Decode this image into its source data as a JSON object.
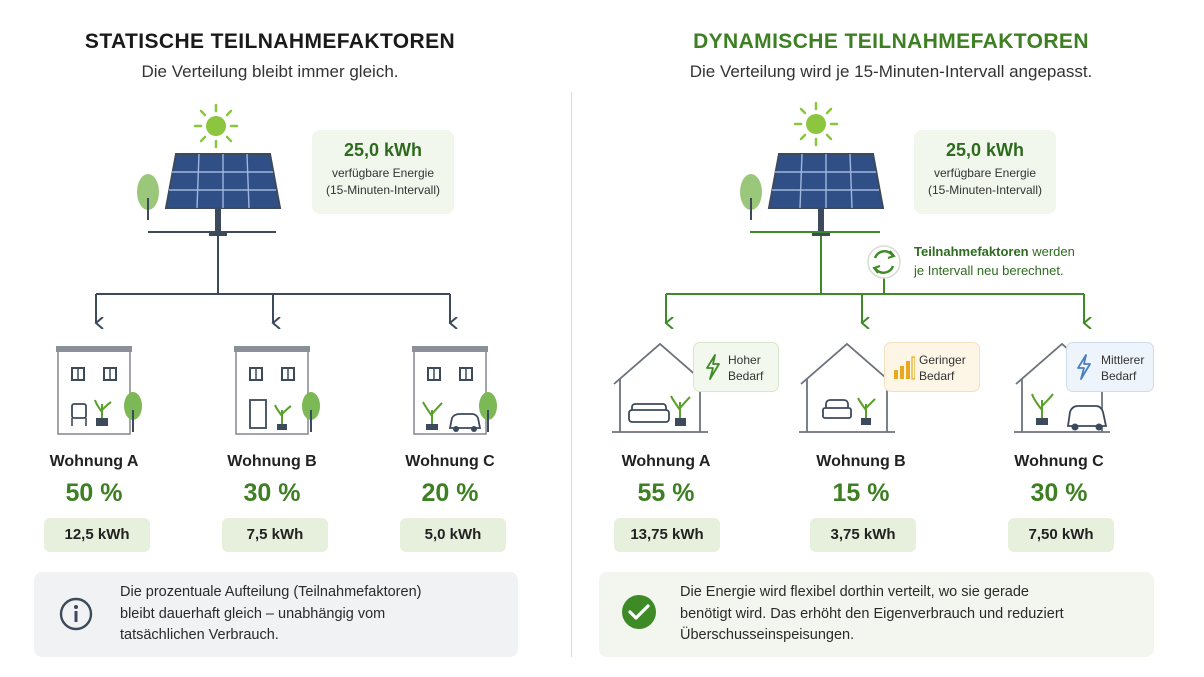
{
  "static": {
    "title": "STATISCHE TEILNAHMEFAKTOREN",
    "subtitle": "Die Verteilung bleibt immer gleich.",
    "energy": {
      "value": "25,0 kWh",
      "label": "verfügbare Energie",
      "interval": "(15-Minuten-Intervall)"
    },
    "apartments": [
      {
        "name": "Wohnung A",
        "percent": "50 %",
        "kwh": "12,5 kWh"
      },
      {
        "name": "Wohnung B",
        "percent": "30 %",
        "kwh": "7,5 kWh"
      },
      {
        "name": "Wohnung C",
        "percent": "20 %",
        "kwh": "5,0 kWh"
      }
    ],
    "note": {
      "line1": "Die prozentuale Aufteilung (Teilnahmefaktoren)",
      "line2": "bleibt dauerhaft gleich – unabhängig vom",
      "line3": "tatsächlichen Verbrauch."
    }
  },
  "dynamic": {
    "title": "DYNAMISCHE TEILNAHMEFAKTOREN",
    "subtitle": "Die Verteilung wird je 15-Minuten-Intervall angepasst.",
    "energy": {
      "value": "25,0 kWh",
      "label": "verfügbare Energie",
      "interval": "(15-Minuten-Intervall)"
    },
    "recalc": {
      "bold": "Teilnahmefaktoren",
      "rest": " werden",
      "line2": "je Intervall neu berechnet."
    },
    "apartments": [
      {
        "name": "Wohnung A",
        "percent": "55 %",
        "kwh": "13,75 kWh",
        "demand1": "Hoher",
        "demand2": "Bedarf"
      },
      {
        "name": "Wohnung B",
        "percent": "15 %",
        "kwh": "3,75 kWh",
        "demand1": "Geringer",
        "demand2": "Bedarf"
      },
      {
        "name": "Wohnung C",
        "percent": "30 %",
        "kwh": "7,50 kWh",
        "demand1": "Mittlerer",
        "demand2": "Bedarf"
      }
    ],
    "note": {
      "line1": "Die Energie wird flexibel dorthin verteilt, wo sie gerade",
      "line2": "benötigt wird. Das erhöht den Eigenverbrauch und reduziert",
      "line3": "Überschusseinspeisungen."
    }
  },
  "colors": {
    "static_title": "#1a1a1a",
    "dynamic_title": "#3d7f22",
    "static_lines": "#3d4a5c",
    "dynamic_lines": "#3d8a26",
    "sun": "#8cc63f"
  }
}
